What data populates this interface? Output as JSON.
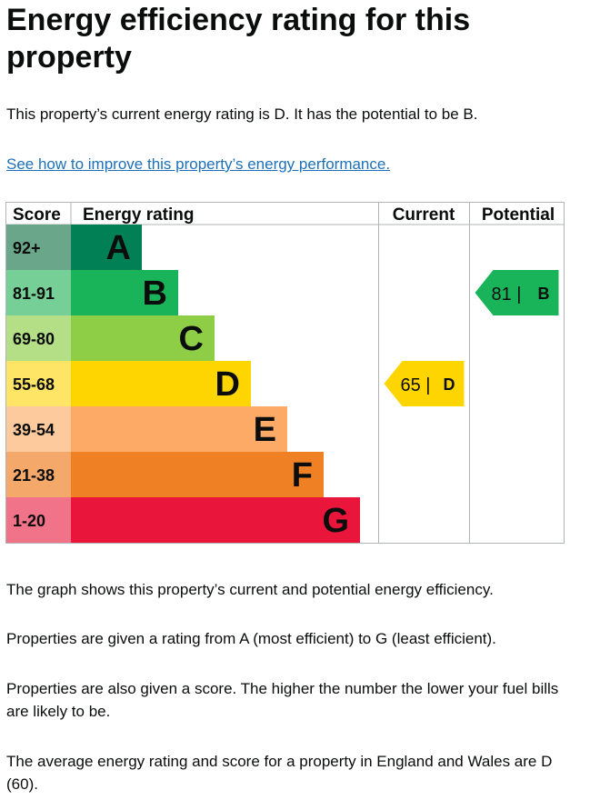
{
  "page": {
    "title": "Energy efficiency rating for this property",
    "intro": "This property’s current energy rating is D. It has the potential to be B.",
    "improve_link": "See how to improve this property’s energy performance.",
    "paragraphs": [
      "The graph shows this property’s current and potential energy efficiency.",
      "Properties are given a rating from A (most efficient) to G (least efficient).",
      "Properties are also given a score. The higher the number the lower your fuel bills are likely to be.",
      "The average energy rating and score for a property in England and Wales are D (60)."
    ]
  },
  "chart_data": {
    "type": "bar",
    "columns": [
      "Score",
      "Energy rating",
      "Current",
      "Potential"
    ],
    "bands": [
      {
        "rating": "A",
        "score_range": "92+",
        "color": "#008054",
        "score_color": "#6aa68a"
      },
      {
        "rating": "B",
        "score_range": "81-91",
        "color": "#19b459",
        "score_color": "#75cf96"
      },
      {
        "rating": "C",
        "score_range": "69-80",
        "color": "#8dce46",
        "score_color": "#b5df87"
      },
      {
        "rating": "D",
        "score_range": "55-68",
        "color": "#ffd500",
        "score_color": "#ffe566"
      },
      {
        "rating": "E",
        "score_range": "39-54",
        "color": "#fcaa65",
        "score_color": "#fdca9e"
      },
      {
        "rating": "F",
        "score_range": "21-38",
        "color": "#ef8023",
        "score_color": "#f4a86a"
      },
      {
        "rating": "G",
        "score_range": "1-20",
        "color": "#e9153b",
        "score_color": "#f07389"
      }
    ],
    "current": {
      "score": 65,
      "rating": "D",
      "label": "65 |",
      "color": "#ffd500"
    },
    "potential": {
      "score": 81,
      "rating": "B",
      "label": "81 |",
      "color": "#19b459"
    }
  }
}
